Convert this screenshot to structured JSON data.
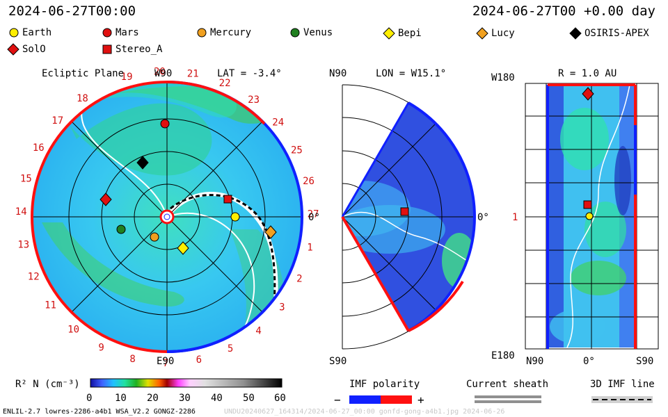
{
  "header": {
    "left_time": "2024-06-27T00:00",
    "right_time": "2024-06-27T00 +0.00 day"
  },
  "legend": [
    {
      "label": "Earth",
      "marker": "circle",
      "color": "#ffee00"
    },
    {
      "label": "Mars",
      "marker": "circle",
      "color": "#e01010"
    },
    {
      "label": "Mercury",
      "marker": "circle",
      "color": "#f0a020"
    },
    {
      "label": "Venus",
      "marker": "circle",
      "color": "#208020"
    },
    {
      "label": "Bepi",
      "marker": "diamond",
      "color": "#ffee00"
    },
    {
      "label": "Lucy",
      "marker": "diamond",
      "color": "#f0a020"
    },
    {
      "label": "OSIRIS-APEX",
      "marker": "diamond",
      "color": "#000000"
    },
    {
      "label": "SolO",
      "marker": "diamond",
      "color": "#e01010"
    },
    {
      "label": "Stereo_A",
      "marker": "square",
      "color": "#e01010"
    }
  ],
  "ecliptic": {
    "title": "Ecliptic Plane",
    "top_label": "W90",
    "lat_label": "LAT = -3.4°",
    "bottom_label": "E90",
    "right_label": "0°",
    "rotations": [
      "19",
      "20",
      "21",
      "22",
      "23",
      "24",
      "25",
      "26",
      "27",
      "1",
      "2",
      "3",
      "4",
      "5",
      "6",
      "7",
      "8",
      "9",
      "10",
      "11",
      "12",
      "13",
      "14",
      "15",
      "16",
      "17",
      "18"
    ]
  },
  "meridional": {
    "top_left": "N90",
    "lon_label": "LON = W15.1°",
    "right_label": "0°",
    "bottom_left": "S90"
  },
  "radial": {
    "top_left": "W180",
    "r_label": "R = 1.0 AU",
    "mid_label": "1",
    "bottom_left": "E180",
    "x_labels": [
      "N90",
      "0°",
      "S90"
    ]
  },
  "colorbar": {
    "title": "R² N (cm⁻³)",
    "ticks": [
      "0",
      "10",
      "20",
      "30",
      "40",
      "50",
      "60"
    ]
  },
  "imf": {
    "title": "IMF polarity",
    "minus": "−",
    "plus": "+"
  },
  "sheath": {
    "title": "Current sheath"
  },
  "line3d": {
    "title": "3D IMF line"
  },
  "footer": {
    "left": "ENLIL-2.7 lowres-2286-a4b1 WSA_V2.2 GONGZ-2286",
    "right": "UNDU20240627_164314/2024-06-27_00:00 gonfd-gong-a4b1.jpg 2024-06-26"
  },
  "chart_data": [
    {
      "type": "heatmap",
      "title": "Ecliptic Plane",
      "quantity": "R² N (cm⁻³)",
      "color_range": [
        0,
        60
      ],
      "bodies_shown": [
        "Earth",
        "Mars",
        "Mercury",
        "Venus",
        "Bepi",
        "Lucy",
        "OSIRIS-APEX",
        "SolO",
        "Stereo_A"
      ]
    },
    {
      "type": "heatmap",
      "title": "LON = W15.1°",
      "latitude_range": [
        "S90",
        "N90"
      ]
    },
    {
      "type": "heatmap",
      "title": "R = 1.0 AU",
      "x_ticks": [
        "N90",
        "0°",
        "S90"
      ],
      "y_ticks": [
        "W180",
        "1",
        "E180"
      ]
    }
  ]
}
